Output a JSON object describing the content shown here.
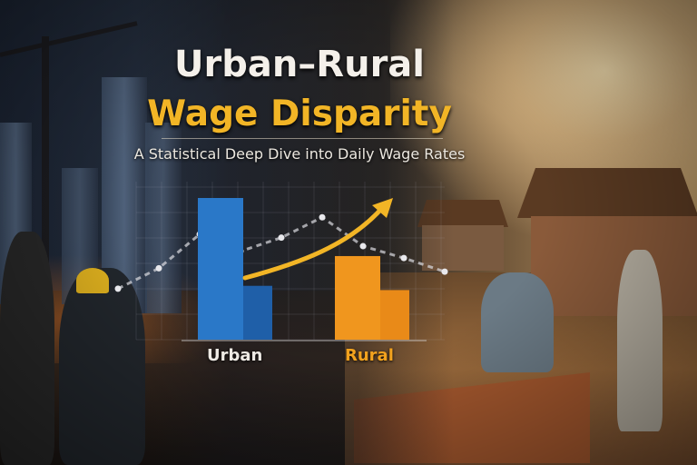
{
  "title_line1": "Urban–Rural",
  "title_line2": "Wage Disparity",
  "subtitle": "A Statistical Deep Dive into Daily Wage Rates",
  "colors": {
    "urban": "#2a78c8",
    "rural": "#f0961e",
    "accent": "#f2b526",
    "title": "#f4f0ea"
  },
  "chart_data": {
    "type": "bar",
    "categories": [
      "Urban",
      "Rural"
    ],
    "series": [
      {
        "values": [
          1.0,
          0.59
        ]
      },
      {
        "values": [
          0.38,
          0.35
        ]
      }
    ],
    "trend_line_relative": [
      0.3,
      0.42,
      0.62,
      0.52,
      0.6,
      0.72,
      0.55,
      0.48,
      0.4
    ],
    "arrow": "rising",
    "grid": true
  }
}
